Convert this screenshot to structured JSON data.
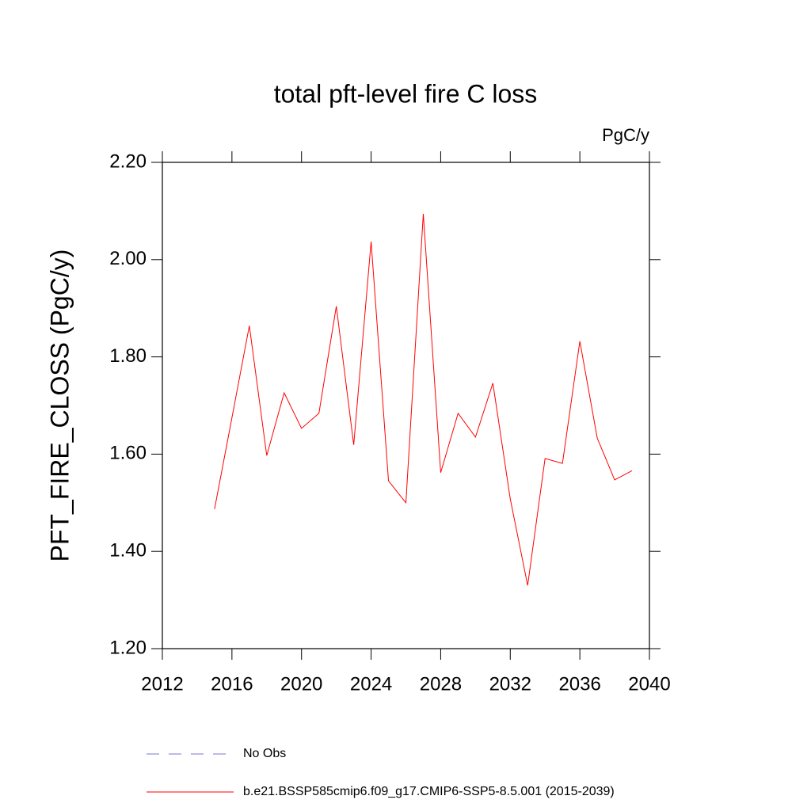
{
  "chart_data": {
    "type": "line",
    "title": "total pft-level fire C loss",
    "units": "PgC/y",
    "y_label": "PFT_FIRE_CLOSS  (PgC/y)",
    "x": [
      2015,
      2016,
      2017,
      2018,
      2019,
      2020,
      2021,
      2022,
      2023,
      2024,
      2025,
      2026,
      2027,
      2028,
      2029,
      2030,
      2031,
      2032,
      2033,
      2034,
      2035,
      2036,
      2037,
      2038,
      2039
    ],
    "series": [
      {
        "name": "No Obs",
        "color": "#7777cc",
        "dashed": true,
        "values": [
          null,
          null,
          null,
          null,
          null,
          null,
          null,
          null,
          null,
          null,
          null,
          null,
          null,
          null,
          null,
          null,
          null,
          null,
          null,
          null,
          null,
          null,
          null,
          null,
          null
        ]
      },
      {
        "name": "b.e21.BSSP585cmip6.f09_g17.CMIP6-SSP5-8.5.001 (2015-2039)",
        "color": "#ff0000",
        "dashed": false,
        "values": [
          1.487,
          1.675,
          1.864,
          1.597,
          1.726,
          1.653,
          1.684,
          1.904,
          1.619,
          2.037,
          1.545,
          1.5,
          2.094,
          1.562,
          1.684,
          1.635,
          1.746,
          1.508,
          1.33,
          1.591,
          1.581,
          1.832,
          1.633,
          1.547,
          1.566
        ]
      }
    ],
    "xlim": [
      2012,
      2040
    ],
    "xticks": [
      2012,
      2016,
      2020,
      2024,
      2028,
      2032,
      2036,
      2040
    ],
    "ylim": [
      1.2,
      2.2
    ],
    "yticks": [
      {
        "value": 1.2,
        "label": "1.20"
      },
      {
        "value": 1.4,
        "label": "1.40"
      },
      {
        "value": 1.6,
        "label": "1.60"
      },
      {
        "value": 1.8,
        "label": "1.80"
      },
      {
        "value": 2.0,
        "label": "2.00"
      },
      {
        "value": 2.2,
        "label": "2.20"
      }
    ],
    "grid": false
  }
}
